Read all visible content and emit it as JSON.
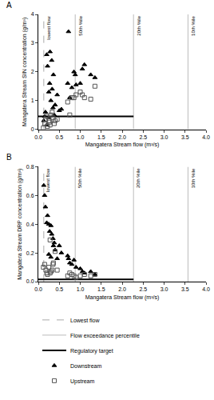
{
  "chart_data": [
    {
      "type": "scatter",
      "title": "A",
      "x_label": "Mangatera Stream flow (m³/s)",
      "y_label": "Mangatera Stream SIN concentration (g/m³)",
      "xlim": [
        0,
        4
      ],
      "xticks": [
        {
          "value": 0,
          "label": "0.0"
        },
        0.5,
        {
          "value": 1,
          "label": "1.0"
        },
        1.5,
        {
          "value": 2,
          "label": "2.0"
        },
        2.5,
        {
          "value": 3,
          "label": "3.0"
        },
        3.5,
        {
          "value": 4,
          "label": "4.0"
        }
      ],
      "ylim": [
        0,
        4
      ],
      "yticks": [
        0,
        1,
        2,
        3,
        4
      ],
      "grid": false,
      "legend": "bottom",
      "lowest_flow": {
        "name": "Lowest flow",
        "x": 0.13,
        "label": "lowest flow",
        "line_style": "dashed",
        "color": "#aaaaaa"
      },
      "percentiles": {
        "name": "Flow exceedance percentile",
        "line_style": "solid",
        "color": "#bbbbbb",
        "lines": [
          {
            "x": 0.88,
            "label": "50th %ile"
          },
          {
            "x": 2.27,
            "label": "20th %ile"
          },
          {
            "x": 3.57,
            "label": "10th %ile"
          }
        ]
      },
      "target": {
        "name": "Regulatory target",
        "value": 0.45,
        "x_end": 2.27,
        "line_style": "solid",
        "color": "#000000"
      },
      "series": [
        {
          "name": "Downstream",
          "marker": "triangle",
          "color": "#000000",
          "x": [
            0.13,
            0.15,
            0.17,
            0.2,
            0.22,
            0.25,
            0.27,
            0.28,
            0.3,
            0.32,
            0.33,
            0.35,
            0.36,
            0.38,
            0.4,
            0.45,
            0.5,
            0.55,
            0.7,
            0.72,
            0.75,
            0.8,
            0.85,
            0.88,
            0.9,
            1.0,
            1.05,
            1.1,
            1.25,
            1.35,
            0.25,
            0.2
          ],
          "values": [
            0.3,
            0.45,
            0.6,
            2.6,
            2.2,
            1.3,
            1.6,
            2.7,
            1.0,
            2.4,
            1.4,
            0.75,
            1.9,
            0.5,
            0.85,
            1.2,
            0.65,
            0.7,
            1.6,
            3.4,
            1.1,
            1.45,
            2.0,
            1.9,
            1.55,
            1.6,
            2.1,
            2.25,
            1.9,
            1.8,
            0.4,
            0.15
          ]
        },
        {
          "name": "Upstream",
          "marker": "open_square",
          "color": "#555555",
          "x": [
            0.12,
            0.15,
            0.17,
            0.2,
            0.22,
            0.25,
            0.27,
            0.3,
            0.33,
            0.35,
            0.4,
            0.45,
            0.7,
            0.75,
            0.8,
            0.85,
            0.9,
            1.0,
            1.05,
            1.1,
            1.25,
            1.35,
            0.28,
            0.38
          ],
          "values": [
            0.05,
            0.2,
            0.35,
            0.45,
            0.1,
            0.3,
            0.25,
            0.5,
            0.6,
            0.4,
            0.3,
            0.35,
            0.95,
            0.5,
            1.1,
            1.1,
            1.2,
            1.3,
            1.2,
            1.1,
            1.05,
            1.5,
            0.15,
            0.2
          ]
        }
      ]
    },
    {
      "type": "scatter",
      "title": "B",
      "x_label": "Mangatera Stream flow (m³/s)",
      "y_label": "Mangatera Stream DRP concentration (g/m³)",
      "xlim": [
        0,
        4
      ],
      "xticks": [
        {
          "value": 0,
          "label": "0.0"
        },
        0.5,
        {
          "value": 1,
          "label": "1.0"
        },
        1.5,
        {
          "value": 2,
          "label": "2.0"
        },
        2.5,
        {
          "value": 3,
          "label": "3.0"
        },
        3.5,
        {
          "value": 4,
          "label": "4.0"
        }
      ],
      "ylim": [
        0,
        0.8
      ],
      "yticks": [
        {
          "value": 0,
          "label": "0.0"
        },
        0.2,
        0.4,
        0.6,
        0.8
      ],
      "grid": false,
      "lowest_flow": {
        "x": 0.13,
        "label": "lowest flow",
        "line_style": "dashed",
        "color": "#aaaaaa"
      },
      "percentiles": {
        "line_style": "solid",
        "color": "#bbbbbb",
        "lines": [
          {
            "x": 0.88,
            "label": "50th %ile"
          },
          {
            "x": 2.27,
            "label": "20th %ile"
          },
          {
            "x": 3.57,
            "label": "10th %ile"
          }
        ]
      },
      "target": {
        "value": 0.015,
        "x_end": 2.27,
        "line_style": "solid",
        "color": "#000000"
      },
      "series": [
        {
          "marker": "triangle",
          "color": "#000000",
          "x": [
            0.13,
            0.15,
            0.17,
            0.2,
            0.22,
            0.25,
            0.27,
            0.3,
            0.32,
            0.35,
            0.36,
            0.38,
            0.4,
            0.45,
            0.5,
            0.55,
            0.7,
            0.72,
            0.75,
            0.8,
            0.85,
            0.9,
            1.0,
            1.05,
            1.1,
            1.25,
            1.35,
            0.25,
            0.3
          ],
          "values": [
            0.67,
            0.6,
            0.52,
            0.41,
            0.46,
            0.4,
            0.35,
            0.39,
            0.33,
            0.3,
            0.25,
            0.27,
            0.22,
            0.16,
            0.25,
            0.2,
            0.18,
            0.16,
            0.13,
            0.12,
            0.15,
            0.1,
            0.09,
            0.07,
            0.06,
            0.07,
            0.05,
            0.19,
            0.17
          ]
        },
        {
          "marker": "open_square",
          "color": "#555555",
          "x": [
            0.12,
            0.15,
            0.18,
            0.2,
            0.22,
            0.25,
            0.28,
            0.3,
            0.33,
            0.35,
            0.4,
            0.45,
            0.7,
            0.75,
            0.8,
            0.85,
            0.9,
            1.0,
            1.1,
            1.25,
            1.35,
            0.28,
            0.36
          ],
          "values": [
            0.1,
            0.12,
            0.08,
            0.06,
            0.05,
            0.1,
            0.06,
            0.07,
            0.08,
            0.12,
            0.21,
            0.08,
            0.04,
            0.06,
            0.05,
            0.04,
            0.03,
            0.04,
            0.05,
            0.04,
            0.05,
            0.29,
            0.13
          ]
        }
      ]
    }
  ]
}
